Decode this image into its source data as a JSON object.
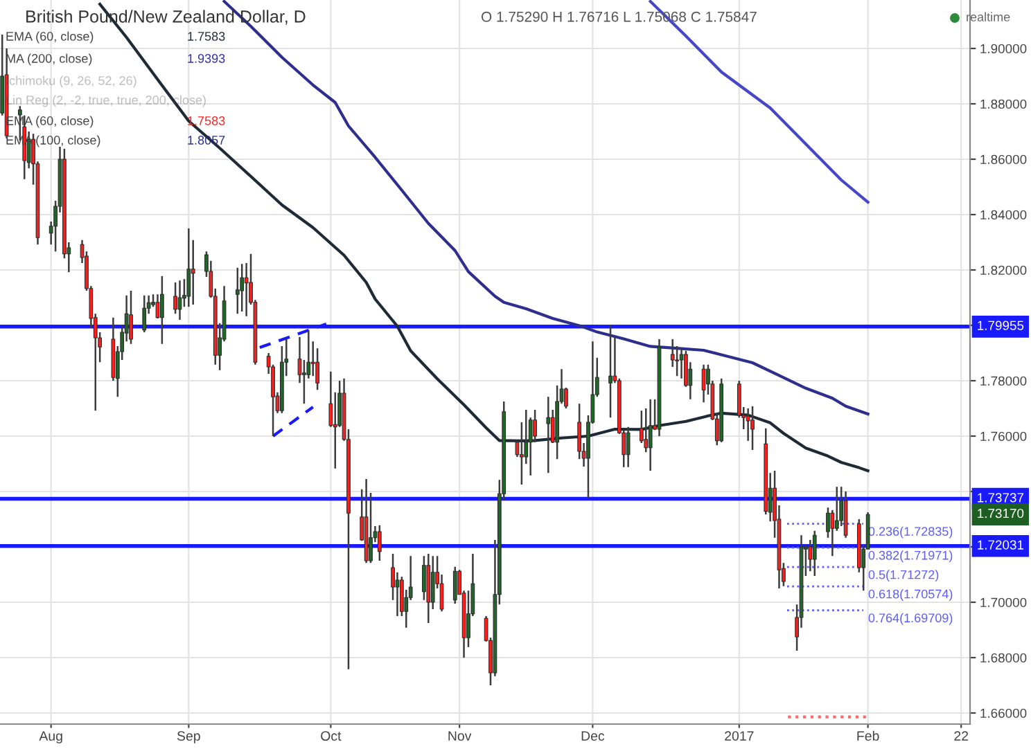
{
  "chart_data": {
    "type": "candlestick",
    "title": "British Pound/New Zealand Dollar, D",
    "subtitle": "O 1.75290 H 1.76716 L 1.75068 C 1.75847",
    "x": [
      "2016-07-21",
      "2016-07-22",
      "2016-07-25",
      "2016-07-26",
      "2016-07-27",
      "2016-07-28",
      "2016-07-29",
      "2016-08-01",
      "2016-08-02",
      "2016-08-03",
      "2016-08-04",
      "2016-08-05",
      "2016-08-08",
      "2016-08-09",
      "2016-08-10",
      "2016-08-11",
      "2016-08-12",
      "2016-08-15",
      "2016-08-16",
      "2016-08-17",
      "2016-08-18",
      "2016-08-19",
      "2016-08-22",
      "2016-08-23",
      "2016-08-24",
      "2016-08-25",
      "2016-08-26",
      "2016-08-29",
      "2016-08-30",
      "2016-08-31",
      "2016-09-01",
      "2016-09-02",
      "2016-09-05",
      "2016-09-06",
      "2016-09-07",
      "2016-09-08",
      "2016-09-09",
      "2016-09-12",
      "2016-09-13",
      "2016-09-14",
      "2016-09-15",
      "2016-09-16",
      "2016-09-19",
      "2016-09-20",
      "2016-09-21",
      "2016-09-22",
      "2016-09-23",
      "2016-09-26",
      "2016-09-27",
      "2016-09-28",
      "2016-09-29",
      "2016-09-30",
      "2016-10-03",
      "2016-10-04",
      "2016-10-05",
      "2016-10-06",
      "2016-10-07",
      "2016-10-10",
      "2016-10-11",
      "2016-10-12",
      "2016-10-13",
      "2016-10-14",
      "2016-10-17",
      "2016-10-18",
      "2016-10-19",
      "2016-10-20",
      "2016-10-21",
      "2016-10-24",
      "2016-10-25",
      "2016-10-26",
      "2016-10-27",
      "2016-10-28",
      "2016-10-31",
      "2016-11-01",
      "2016-11-02",
      "2016-11-03",
      "2016-11-04",
      "2016-11-07",
      "2016-11-08",
      "2016-11-09",
      "2016-11-10",
      "2016-11-11",
      "2016-11-14",
      "2016-11-15",
      "2016-11-16",
      "2016-11-17",
      "2016-11-18",
      "2016-11-21",
      "2016-11-22",
      "2016-11-23",
      "2016-11-24",
      "2016-11-25",
      "2016-11-28",
      "2016-11-29",
      "2016-11-30",
      "2016-12-01",
      "2016-12-02",
      "2016-12-05",
      "2016-12-06",
      "2016-12-07",
      "2016-12-08",
      "2016-12-09",
      "2016-12-12",
      "2016-12-13",
      "2016-12-14",
      "2016-12-15",
      "2016-12-16",
      "2016-12-19",
      "2016-12-20",
      "2016-12-21",
      "2016-12-22",
      "2016-12-23",
      "2016-12-26",
      "2016-12-27",
      "2016-12-28",
      "2016-12-29",
      "2016-12-30",
      "2017-01-03",
      "2017-01-04",
      "2017-01-05",
      "2017-01-06",
      "2017-01-09",
      "2017-01-10",
      "2017-01-11",
      "2017-01-12",
      "2017-01-13",
      "2017-01-16",
      "2017-01-17",
      "2017-01-18",
      "2017-01-19",
      "2017-01-20",
      "2017-01-23",
      "2017-01-24",
      "2017-01-25",
      "2017-01-26",
      "2017-01-27",
      "2017-01-30",
      "2017-01-31",
      "2017-02-01"
    ],
    "ohlc": [
      [
        1.8767,
        1.905,
        1.8758,
        1.89
      ],
      [
        1.8905,
        1.9,
        1.8675,
        1.8685
      ],
      [
        1.876,
        1.8792,
        1.8667,
        1.8778
      ],
      [
        1.8717,
        1.8758,
        1.8528,
        1.8595
      ],
      [
        1.8588,
        1.87,
        1.8567,
        1.8672
      ],
      [
        1.8672,
        1.8692,
        1.8508,
        1.8583
      ],
      [
        1.8583,
        1.8592,
        1.8292,
        1.8317
      ],
      [
        1.8333,
        1.8375,
        1.8292,
        1.8358
      ],
      [
        1.8358,
        1.845,
        1.8267,
        1.843
      ],
      [
        1.843,
        1.8645,
        1.8408,
        1.86
      ],
      [
        1.86,
        1.8638,
        1.8242,
        1.8258
      ],
      [
        1.8258,
        1.83,
        1.8192,
        1.828
      ],
      [
        1.8292,
        1.8308,
        1.8225,
        1.8245
      ],
      [
        1.825,
        1.8267,
        1.8125,
        1.8133
      ],
      [
        1.8133,
        1.8142,
        1.7992,
        1.8025
      ],
      [
        1.8028,
        1.8042,
        1.7692,
        1.7955
      ],
      [
        1.7955,
        1.7975,
        1.7867,
        1.7922
      ],
      [
        1.795,
        1.8028,
        1.78,
        1.7812
      ],
      [
        1.7808,
        1.7925,
        1.7742,
        1.7905
      ],
      [
        1.7905,
        1.8,
        1.7875,
        1.7975
      ],
      [
        1.7972,
        1.8108,
        1.7942,
        1.8042
      ],
      [
        1.8038,
        1.8125,
        1.7933,
        1.795
      ],
      [
        1.7983,
        1.8108,
        1.7975,
        1.8062
      ],
      [
        1.8062,
        1.8108,
        1.8042,
        1.8082
      ],
      [
        1.8075,
        1.8112,
        1.8067,
        1.8083
      ],
      [
        1.8083,
        1.8112,
        1.8025,
        1.8028
      ],
      [
        1.8028,
        1.8178,
        1.7933,
        1.8112
      ],
      [
        1.8105,
        1.8155,
        1.8042,
        1.8058
      ],
      [
        1.8058,
        1.8162,
        1.802,
        1.81
      ],
      [
        1.8098,
        1.8167,
        1.8067,
        1.8108
      ],
      [
        1.8105,
        1.835,
        1.8067,
        1.8203
      ],
      [
        1.8203,
        1.8308,
        1.8075,
        1.8188
      ],
      [
        1.8195,
        1.8267,
        1.8175,
        1.8255
      ],
      [
        1.8195,
        1.8233,
        1.81,
        1.8105
      ],
      [
        1.8105,
        1.8133,
        1.7858,
        1.7892
      ],
      [
        1.7892,
        1.8008,
        1.7838,
        1.7955
      ],
      [
        1.795,
        1.8142,
        1.7942,
        1.8088
      ],
      [
        1.8112,
        1.8208,
        1.8042,
        1.8128
      ],
      [
        1.8125,
        1.8222,
        1.805,
        1.8172
      ],
      [
        1.8172,
        1.8225,
        1.8033,
        1.8153
      ],
      [
        1.8155,
        1.8258,
        1.8075,
        1.8083
      ],
      [
        1.8083,
        1.8092,
        1.7858,
        1.7867
      ],
      [
        1.7888,
        1.79,
        1.7825,
        1.785
      ],
      [
        1.785,
        1.7858,
        1.76,
        1.7742
      ],
      [
        1.7745,
        1.7758,
        1.7683,
        1.7692
      ],
      [
        1.7692,
        1.7925,
        1.7683,
        1.7867
      ],
      [
        1.7867,
        1.795,
        1.7817,
        1.7878
      ],
      [
        1.7878,
        1.7958,
        1.7792,
        1.7822
      ],
      [
        1.7822,
        1.7875,
        1.7717,
        1.7828
      ],
      [
        1.7822,
        1.7983,
        1.7808,
        1.7867
      ],
      [
        1.7867,
        1.7942,
        1.7817,
        1.7862
      ],
      [
        1.7867,
        1.7917,
        1.7767,
        1.7792
      ],
      [
        1.7717,
        1.7833,
        1.7633,
        1.7638
      ],
      [
        1.7642,
        1.7758,
        1.7483,
        1.7633
      ],
      [
        1.7638,
        1.78,
        1.7633,
        1.7755
      ],
      [
        1.7755,
        1.7808,
        1.7583,
        1.7588
      ],
      [
        1.7588,
        1.7625,
        1.6758,
        1.7322
      ],
      [
        1.7308,
        1.7408,
        1.7222,
        1.7225
      ],
      [
        1.7308,
        1.7445,
        1.7142,
        1.715
      ],
      [
        1.715,
        1.7395,
        1.7142,
        1.7233
      ],
      [
        1.7233,
        1.7275,
        1.7217,
        1.7255
      ],
      [
        1.7255,
        1.7278,
        1.715,
        1.7183
      ],
      [
        1.7125,
        1.7175,
        1.7008,
        1.7055
      ],
      [
        1.7055,
        1.7108,
        1.695,
        1.708
      ],
      [
        1.708,
        1.7092,
        1.695,
        1.6967
      ],
      [
        1.6967,
        1.7045,
        1.6908,
        1.7017
      ],
      [
        1.7017,
        1.7167,
        1.7008,
        1.7055
      ],
      [
        1.7038,
        1.7167,
        1.7008,
        1.7133
      ],
      [
        1.7133,
        1.7175,
        1.6925,
        1.7
      ],
      [
        1.7,
        1.7167,
        1.6975,
        1.7108
      ],
      [
        1.7108,
        1.7167,
        1.705,
        1.7067
      ],
      [
        1.7067,
        1.71,
        1.6967,
        1.6975
      ],
      [
        1.7008,
        1.7128,
        1.6995,
        1.7112
      ],
      [
        1.7112,
        1.7117,
        1.7028,
        1.7028
      ],
      [
        1.7033,
        1.7042,
        1.68,
        1.6872
      ],
      [
        1.6872,
        1.7042,
        1.6838,
        1.6958
      ],
      [
        1.6958,
        1.7175,
        1.695,
        1.7067
      ],
      [
        1.6942,
        1.695,
        1.6858,
        1.6862
      ],
      [
        1.6862,
        1.6872,
        1.67,
        1.6745
      ],
      [
        1.6745,
        1.7225,
        1.6733,
        1.7028
      ],
      [
        1.7028,
        1.7442,
        1.6992,
        1.7392
      ],
      [
        1.7392,
        1.7725,
        1.7367,
        1.7688
      ],
      [
        1.7578,
        1.7583,
        1.7525,
        1.7533
      ],
      [
        1.7533,
        1.765,
        1.7425,
        1.7525
      ],
      [
        1.7525,
        1.7695,
        1.75,
        1.7578
      ],
      [
        1.7578,
        1.7667,
        1.7458,
        1.7658
      ],
      [
        1.7658,
        1.7695,
        1.7578,
        1.76
      ],
      [
        1.7645,
        1.7742,
        1.7467,
        1.7667
      ],
      [
        1.7667,
        1.7695,
        1.7575,
        1.7578
      ],
      [
        1.7578,
        1.7783,
        1.7517,
        1.7725
      ],
      [
        1.7725,
        1.7842,
        1.7717,
        1.777
      ],
      [
        1.777,
        1.7775,
        1.77,
        1.7708
      ],
      [
        1.765,
        1.7717,
        1.7517,
        1.7545
      ],
      [
        1.7545,
        1.7575,
        1.749,
        1.752
      ],
      [
        1.752,
        1.7675,
        1.7375,
        1.765
      ],
      [
        1.765,
        1.7942,
        1.7645,
        1.775
      ],
      [
        1.775,
        1.7883,
        1.7742,
        1.7812
      ],
      [
        1.7792,
        1.8,
        1.7667,
        1.7817
      ],
      [
        1.7817,
        1.7958,
        1.7792,
        1.78
      ],
      [
        1.78,
        1.7808,
        1.7608,
        1.7612
      ],
      [
        1.7612,
        1.7622,
        1.7488,
        1.7533
      ],
      [
        1.7533,
        1.7633,
        1.7488,
        1.7612
      ],
      [
        1.7628,
        1.7692,
        1.7575,
        1.7583
      ],
      [
        1.7588,
        1.77,
        1.7542,
        1.7558
      ],
      [
        1.7558,
        1.7733,
        1.7475,
        1.7638
      ],
      [
        1.7638,
        1.7733,
        1.7622,
        1.7625
      ],
      [
        1.7625,
        1.795,
        1.76,
        1.7922
      ],
      [
        1.7895,
        1.795,
        1.785,
        1.7875
      ],
      [
        1.7875,
        1.7925,
        1.7817,
        1.7872
      ],
      [
        1.7875,
        1.7917,
        1.7808,
        1.7895
      ],
      [
        1.7895,
        1.7908,
        1.7778,
        1.7783
      ],
      [
        1.7783,
        1.7867,
        1.7733,
        1.7842
      ],
      [
        1.7842,
        1.7858,
        1.7722,
        1.7767
      ],
      [
        1.7788,
        1.7858,
        1.775,
        1.7842
      ],
      [
        1.7788,
        1.78,
        1.7658,
        1.7662
      ],
      [
        1.7662,
        1.7683,
        1.7567,
        1.7583
      ],
      [
        1.7583,
        1.7808,
        1.7578,
        1.7788
      ],
      [
        1.7788,
        1.78,
        1.7667,
        1.7675
      ],
      [
        1.7675,
        1.7705,
        1.7625,
        1.7667
      ],
      [
        1.7672,
        1.77,
        1.7583,
        1.7655
      ],
      [
        1.7658,
        1.7708,
        1.755,
        1.7625
      ],
      [
        1.7572,
        1.7628,
        1.7317,
        1.7328
      ],
      [
        1.7325,
        1.7467,
        1.7292,
        1.7412
      ],
      [
        1.7412,
        1.7475,
        1.7233,
        1.7295
      ],
      [
        1.73,
        1.735,
        1.705,
        1.7117
      ],
      [
        1.7122,
        1.7142,
        1.7058,
        1.7075
      ],
      [
        1.6945,
        1.6992,
        1.6825,
        1.6875
      ],
      [
        1.6945,
        1.7242,
        1.6908,
        1.72
      ],
      [
        1.7192,
        1.7208,
        1.7095,
        1.72
      ],
      [
        1.72,
        1.7225,
        1.7112,
        1.7155
      ],
      [
        1.7155,
        1.7258,
        1.7095,
        1.7242
      ],
      [
        1.7255,
        1.7342,
        1.7233,
        1.7322
      ],
      [
        1.7322,
        1.7333,
        1.7167,
        1.7267
      ],
      [
        1.7267,
        1.7417,
        1.7258,
        1.7295
      ],
      [
        1.7295,
        1.7417,
        1.7275,
        1.7367
      ],
      [
        1.7367,
        1.74,
        1.7233,
        1.7242
      ],
      [
        1.7283,
        1.73,
        1.7108,
        1.7125
      ],
      [
        1.7125,
        1.7208,
        1.7042,
        1.7192
      ],
      [
        1.7192,
        1.7325,
        1.7192,
        1.7317
      ]
    ],
    "series": [
      {
        "type": "line",
        "color": "#1e2a36",
        "x": [
          "2016-08-12",
          "2016-08-18",
          "2016-08-25",
          "2016-09-01",
          "2016-09-08",
          "2016-09-15",
          "2016-09-22",
          "2016-09-29",
          "2016-10-06",
          "2016-10-11",
          "2016-10-13",
          "2016-10-18",
          "2016-10-21",
          "2016-10-27",
          "2016-11-02",
          "2016-11-07",
          "2016-11-10",
          "2016-11-15",
          "2016-11-18",
          "2016-11-24",
          "2016-11-30",
          "2016-12-06",
          "2016-12-12",
          "2016-12-16",
          "2016-12-22",
          "2016-12-27",
          "2016-12-30",
          "2017-01-05",
          "2017-01-10",
          "2017-01-13",
          "2017-01-18",
          "2017-01-23",
          "2017-01-26",
          "2017-01-30",
          "2017-02-01"
        ],
        "values": [
          1.916,
          1.904,
          1.8888,
          1.8738,
          1.864,
          1.8538,
          1.8435,
          1.8353,
          1.8253,
          1.8155,
          1.8095,
          1.7997,
          1.7908,
          1.7807,
          1.7713,
          1.763,
          1.7584,
          1.7583,
          1.7584,
          1.7593,
          1.76,
          1.7625,
          1.7624,
          1.7638,
          1.7653,
          1.7673,
          1.7683,
          1.7676,
          1.7648,
          1.761,
          1.7557,
          1.7528,
          1.7505,
          1.7486,
          1.7475
        ]
      },
      {
        "type": "line",
        "color": "#2e2e8c",
        "x": [
          "2016-09-09",
          "2016-09-15",
          "2016-09-22",
          "2016-09-29",
          "2016-10-04",
          "2016-10-07",
          "2016-10-13",
          "2016-10-19",
          "2016-10-25",
          "2016-10-31",
          "2016-11-03",
          "2016-11-09",
          "2016-11-11",
          "2016-11-16",
          "2016-11-22",
          "2016-11-28",
          "2016-12-02",
          "2016-12-08",
          "2016-12-14",
          "2016-12-20",
          "2016-12-26",
          "2016-12-30",
          "2017-01-06",
          "2017-01-12",
          "2017-01-18",
          "2017-01-24",
          "2017-01-27",
          "2017-02-01"
        ],
        "values": [
          1.917,
          1.908,
          1.8968,
          1.8868,
          1.8805,
          1.872,
          1.8607,
          1.8488,
          1.8368,
          1.827,
          1.8194,
          1.8105,
          1.8083,
          1.806,
          1.8025,
          1.7999,
          1.7976,
          1.7951,
          1.7924,
          1.7917,
          1.791,
          1.7894,
          1.7865,
          1.7819,
          1.7773,
          1.7737,
          1.7708,
          1.768
        ]
      },
      {
        "type": "line",
        "color": "#4646c8",
        "x": [
          "2016-12-14",
          "2016-12-22",
          "2016-12-30",
          "2017-01-10",
          "2017-01-18",
          "2017-01-26",
          "2017-02-01"
        ],
        "values": [
          1.917,
          1.9045,
          1.8915,
          1.8785,
          1.8655,
          1.8525,
          1.8445
        ]
      },
      {
        "type": "line",
        "color": "#1a1aff",
        "line_style": "dashed",
        "x": [
          "2016-09-17",
          "2016-10-02"
        ],
        "values": [
          1.792,
          1.8005
        ]
      },
      {
        "type": "line",
        "color": "#1a1aff",
        "line_style": "dashed",
        "x": [
          "2016-09-20",
          "2016-09-29"
        ],
        "values": [
          1.76,
          1.7705
        ]
      },
      {
        "type": "line",
        "color": "#ff6a6a",
        "line_style": "dotted",
        "x": [
          "2017-01-14",
          "2017-02-01"
        ],
        "values": [
          1.6586,
          1.6586
        ]
      }
    ],
    "xlim": [
      "2016-07-20T12:00",
      "2017-02-24"
    ],
    "xticks": [
      {
        "value": "2016-08-01",
        "label": "Aug"
      },
      {
        "value": "2016-09-01",
        "label": "Sep"
      },
      {
        "value": "2016-10-03",
        "label": "Oct"
      },
      {
        "value": "2016-11-01",
        "label": "Nov"
      },
      {
        "value": "2016-12-01",
        "label": "Dec"
      },
      {
        "value": "2017-01-03",
        "label": "2017"
      },
      {
        "value": "2017-02-01",
        "label": "Feb"
      },
      {
        "value": "2017-02-22",
        "label": "22"
      }
    ],
    "ylim": [
      1.656,
      1.9175
    ],
    "yticks": [
      {
        "value": 1.66,
        "label": "1.66000"
      },
      {
        "value": 1.68,
        "label": "1.68000"
      },
      {
        "value": 1.7,
        "label": "1.70000"
      },
      {
        "value": 1.72,
        "label": null
      },
      {
        "value": 1.74,
        "label": null
      },
      {
        "value": 1.76,
        "label": "1.76000"
      },
      {
        "value": 1.78,
        "label": "1.78000"
      },
      {
        "value": 1.8,
        "label": null
      },
      {
        "value": 1.82,
        "label": "1.82000"
      },
      {
        "value": 1.84,
        "label": "1.84000"
      },
      {
        "value": 1.86,
        "label": "1.86000"
      },
      {
        "value": 1.88,
        "label": "1.88000"
      },
      {
        "value": 1.9,
        "label": "1.90000"
      }
    ],
    "ref_lines": [
      {
        "axis": "y",
        "value": 1.79955,
        "label": "1.79955",
        "color": "#1a1aff"
      },
      {
        "axis": "y",
        "value": 1.73737,
        "label": "1.73737",
        "color": "#1a1aff"
      },
      {
        "axis": "y",
        "value": 1.72031,
        "label": "1.72031",
        "color": "#1a1aff"
      },
      {
        "axis": "y",
        "value": 1.72835,
        "label": "0.236(1.72835)",
        "color": "#5c5cff",
        "line_style": "dotted"
      },
      {
        "axis": "y",
        "value": 1.71971,
        "label": "0.382(1.71971)",
        "color": "#5c5cff",
        "line_style": "dotted"
      },
      {
        "axis": "y",
        "value": 1.71272,
        "label": "0.5(1.71272)",
        "color": "#5c5cff",
        "line_style": "dotted"
      },
      {
        "axis": "y",
        "value": 1.70574,
        "label": "0.618(1.70574)",
        "color": "#5c5cff",
        "line_style": "dotted"
      },
      {
        "axis": "y",
        "value": 1.69709,
        "label": "0.764(1.69709)",
        "color": "#5c5cff",
        "line_style": "dotted"
      }
    ],
    "annotations": [
      "EMA (60, close)",
      "1.7583",
      "MA (200, close)",
      "1.9393",
      "Ichimoku (9, 26, 52, 26)",
      "Lin Reg (2, -2, true, true, 200, close)",
      "EMA (60, close)",
      "1.7583",
      "EMA (100, close)",
      "1.8057",
      "realtime",
      "1.73170"
    ],
    "grid": true
  }
}
